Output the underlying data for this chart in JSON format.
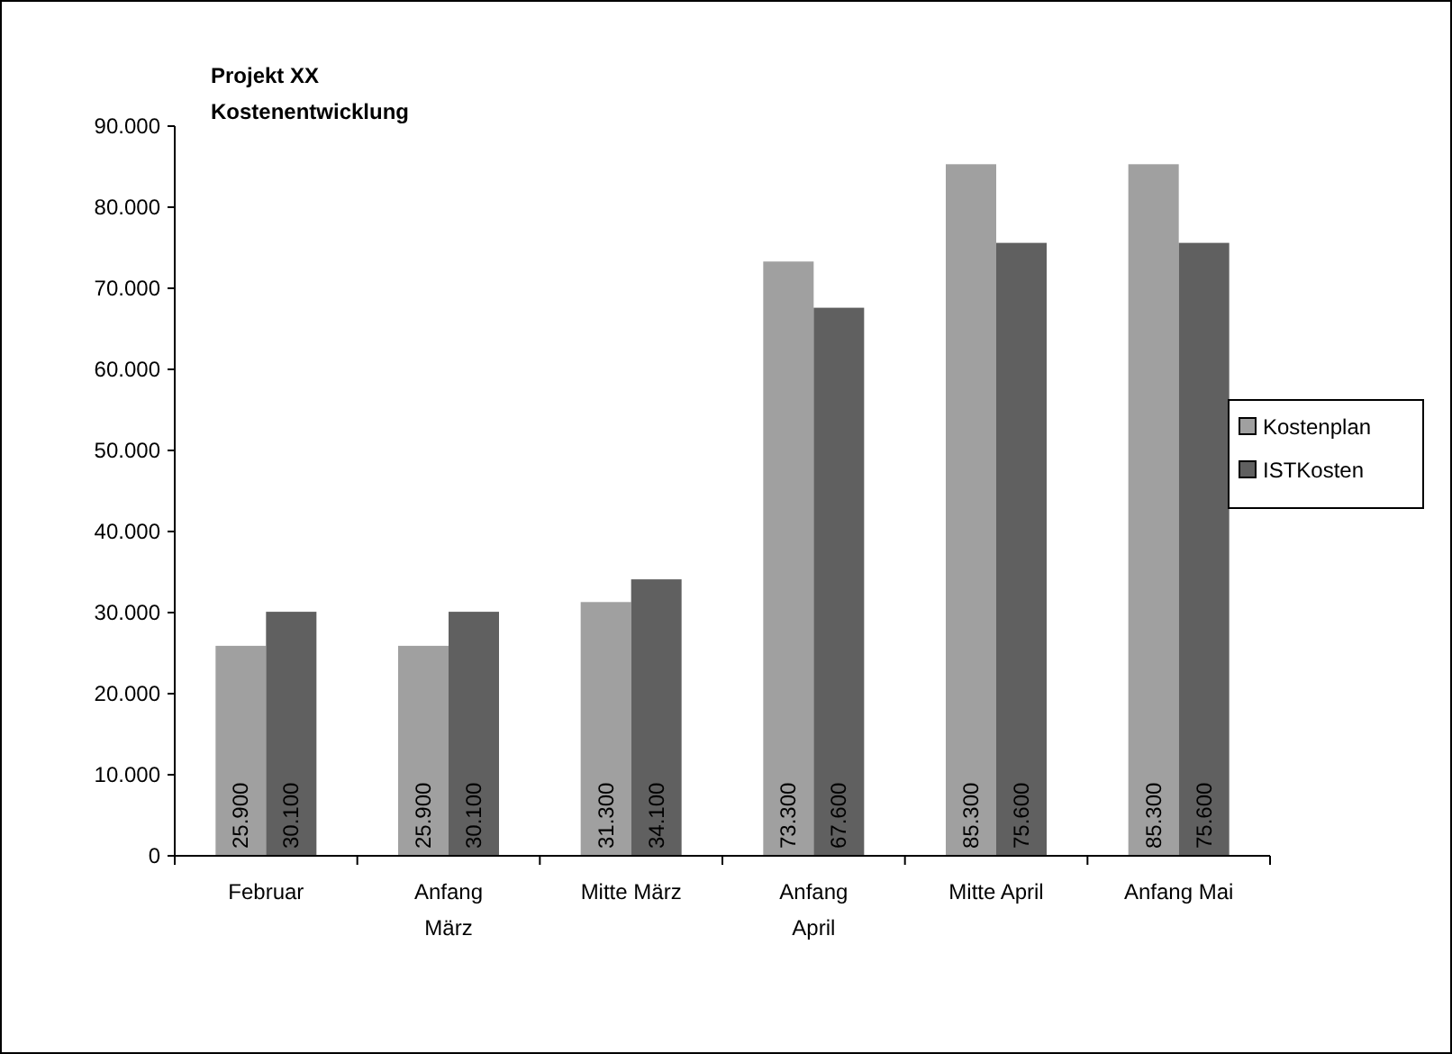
{
  "chart_data": {
    "type": "bar",
    "title": "Projekt XX",
    "subtitle": "Kostenentwicklung",
    "categories": [
      "Februar",
      "Anfang März",
      "Mitte März",
      "Anfang April",
      "Mitte April",
      "Anfang Mai"
    ],
    "series": [
      {
        "name": "Kostenplan",
        "color": "#a0a0a0",
        "values": [
          25900,
          25900,
          31300,
          73300,
          85300,
          85300
        ],
        "value_labels": [
          "25.900",
          "25.900",
          "31.300",
          "73.300",
          "85.300",
          "85.300"
        ]
      },
      {
        "name": "ISTKosten",
        "color": "#606060",
        "values": [
          30100,
          30100,
          34100,
          67600,
          75600,
          75600
        ],
        "value_labels": [
          "30.100",
          "30.100",
          "34.100",
          "67.600",
          "75.600",
          "75.600"
        ]
      }
    ],
    "ylim": [
      0,
      90000
    ],
    "yticks": [
      {
        "value": 0,
        "label": "0"
      },
      {
        "value": 10000,
        "label": "10.000"
      },
      {
        "value": 20000,
        "label": "20.000"
      },
      {
        "value": 30000,
        "label": "30.000"
      },
      {
        "value": 40000,
        "label": "40.000"
      },
      {
        "value": 50000,
        "label": "50.000"
      },
      {
        "value": 60000,
        "label": "60.000"
      },
      {
        "value": 70000,
        "label": "70.000"
      },
      {
        "value": 80000,
        "label": "80.000"
      },
      {
        "value": 90000,
        "label": "90.000"
      }
    ],
    "legend": "right"
  }
}
